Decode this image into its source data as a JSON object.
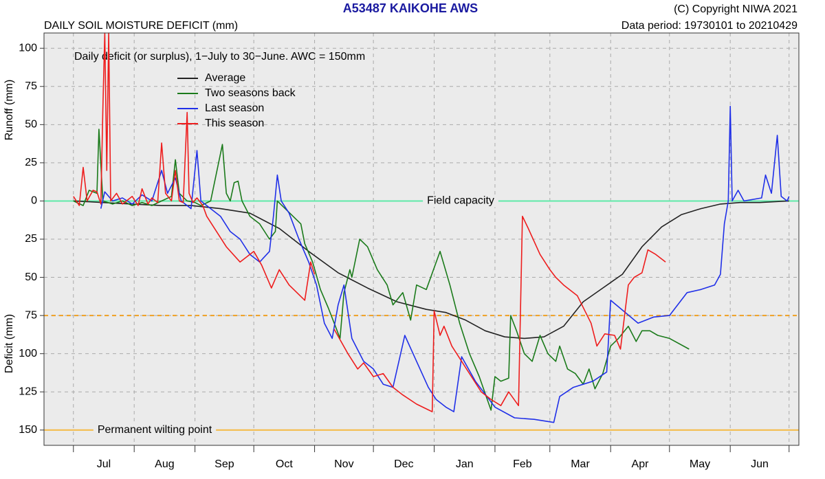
{
  "chart_data": {
    "type": "line",
    "title": "A53487  KAIKOHE AWS",
    "subtitle": "DAILY SOIL MOISTURE DEFICIT (mm)",
    "copyright": "(C) Copyright NIWA  2021",
    "data_period": "Data period:  19730101  to  20210429",
    "annotation": "Daily deficit (or surplus), 1−July to 30−June.  AWC = 150mm",
    "y_label_top": "Runoff (mm)",
    "y_label_bottom": "Deficit (mm)",
    "categories": [
      "Jul",
      "Aug",
      "Sep",
      "Oct",
      "Nov",
      "Dec",
      "Jan",
      "Feb",
      "Mar",
      "Apr",
      "May",
      "Jun"
    ],
    "xticks": [
      0,
      31,
      62,
      92,
      123,
      153,
      184,
      215,
      243,
      274,
      304,
      335,
      365
    ],
    "xlim": [
      -15,
      370
    ],
    "ylim": [
      -160,
      110
    ],
    "yticks": [
      100,
      75,
      50,
      25,
      0,
      {
        "value": -25,
        "label": "25"
      },
      {
        "value": -50,
        "label": "50"
      },
      {
        "value": -75,
        "label": "75"
      },
      {
        "value": -100,
        "label": "100"
      },
      {
        "value": -125,
        "label": "125"
      },
      {
        "value": -150,
        "label": "150"
      }
    ],
    "grid": true,
    "legend": "top-left",
    "hlines": [
      {
        "value": 0,
        "label": "Field capacity",
        "color": "#5eeaa8"
      },
      {
        "value": -75,
        "color": "#f0a020",
        "style": "dashed"
      },
      {
        "value": -150,
        "label": "Permanent wilting point",
        "color": "#f5b942"
      }
    ],
    "series": [
      {
        "name": "Average",
        "color": "#222222",
        "x": [
          0,
          15,
          30,
          45,
          60,
          75,
          90,
          105,
          120,
          135,
          150,
          165,
          180,
          190,
          200,
          210,
          220,
          230,
          240,
          250,
          260,
          270,
          280,
          290,
          300,
          310,
          320,
          330,
          340,
          350,
          365
        ],
        "values": [
          0,
          -1,
          -2,
          -3,
          -3,
          -5,
          -8,
          -18,
          -33,
          -47,
          -57,
          -66,
          -71,
          -73,
          -78,
          -85,
          -89,
          -90,
          -89,
          -82,
          -66,
          -57,
          -48,
          -30,
          -17,
          -9,
          -5,
          -2,
          -1,
          -1,
          0
        ]
      },
      {
        "name": "Two seasons back",
        "color": "#1a7a1a",
        "x": [
          0,
          5,
          8,
          12,
          13,
          15,
          20,
          25,
          30,
          35,
          40,
          45,
          50,
          52,
          54,
          58,
          62,
          65,
          70,
          76,
          78,
          80,
          82,
          84,
          86,
          90,
          95,
          100,
          103,
          104,
          108,
          112,
          116,
          118,
          122,
          126,
          130,
          133,
          136,
          138,
          141,
          142,
          146,
          150,
          155,
          160,
          163,
          168,
          172,
          175,
          180,
          187,
          192,
          197,
          202,
          207,
          213,
          215,
          218,
          222,
          223,
          226,
          230,
          234,
          238,
          242,
          246,
          248,
          252,
          256,
          260,
          263,
          266,
          270,
          274,
          278,
          283,
          287,
          290,
          294,
          298,
          304,
          314
        ],
        "values": [
          0,
          -3,
          7,
          5,
          47,
          0,
          -2,
          0,
          -3,
          -1,
          -3,
          0,
          3,
          27,
          5,
          0,
          -1,
          -3,
          0,
          37,
          5,
          0,
          12,
          13,
          0,
          -10,
          -15,
          -25,
          -20,
          0,
          -5,
          -10,
          -15,
          -28,
          -40,
          -58,
          -70,
          -80,
          -90,
          -60,
          -45,
          -50,
          -25,
          -30,
          -45,
          -55,
          -68,
          -60,
          -78,
          -55,
          -58,
          -33,
          -55,
          -80,
          -100,
          -115,
          -137,
          -115,
          -118,
          -116,
          -75,
          -85,
          -100,
          -105,
          -88,
          -100,
          -105,
          -95,
          -110,
          -113,
          -120,
          -110,
          -123,
          -113,
          -95,
          -90,
          -82,
          -92,
          -85,
          -85,
          -88,
          -90,
          -97
        ]
      },
      {
        "name": "Last season",
        "color": "#1f2fe8",
        "x": [
          14,
          16,
          20,
          25,
          30,
          35,
          40,
          45,
          48,
          52,
          55,
          60,
          63,
          65,
          70,
          75,
          80,
          85,
          90,
          95,
          100,
          102,
          104,
          106,
          110,
          115,
          120,
          124,
          128,
          132,
          135,
          138,
          142,
          148,
          153,
          158,
          163,
          169,
          175,
          181,
          185,
          190,
          194,
          198,
          205,
          215,
          225,
          235,
          245,
          248,
          255,
          265,
          272,
          274,
          288,
          296,
          304,
          313,
          320,
          327,
          330,
          332,
          334,
          335,
          336,
          339,
          342,
          351,
          353,
          356,
          359,
          361,
          364,
          365
        ],
        "values": [
          -5,
          6,
          0,
          2,
          -2,
          4,
          0,
          20,
          5,
          15,
          0,
          -5,
          33,
          0,
          -5,
          -10,
          -20,
          -25,
          -35,
          -40,
          -33,
          -10,
          17,
          0,
          -8,
          -25,
          -40,
          -55,
          -80,
          -90,
          -68,
          -55,
          -90,
          -105,
          -110,
          -120,
          -122,
          -88,
          -105,
          -122,
          -130,
          -135,
          -138,
          -102,
          -118,
          -135,
          -142,
          -143,
          -145,
          -128,
          -122,
          -118,
          -112,
          -65,
          -80,
          -76,
          -75,
          -60,
          -58,
          -55,
          -48,
          -15,
          0,
          62,
          0,
          7,
          0,
          2,
          17,
          5,
          43,
          3,
          0,
          3
        ]
      },
      {
        "name": "This season",
        "color": "#ee1c1c",
        "x": [
          0,
          3,
          5,
          7,
          10,
          12,
          14,
          15,
          16,
          17,
          18,
          19,
          22,
          25,
          30,
          33,
          35,
          38,
          40,
          43,
          45,
          47,
          50,
          52,
          54,
          56,
          58,
          59,
          61,
          63,
          66,
          68,
          78,
          85,
          92,
          96,
          101,
          105,
          110,
          118,
          121,
          123,
          128,
          133,
          140,
          145,
          148,
          153,
          158,
          163,
          168,
          175,
          183,
          184,
          187,
          189,
          193,
          198,
          203,
          208,
          213,
          218,
          222,
          227,
          229,
          232,
          238,
          243,
          246,
          250,
          257,
          264,
          267,
          271,
          276,
          279,
          283,
          286,
          290,
          293,
          297,
          302
        ],
        "values": [
          3,
          -3,
          22,
          0,
          7,
          6,
          -2,
          60,
          110,
          20,
          110,
          0,
          5,
          -2,
          3,
          -3,
          8,
          -2,
          2,
          -1,
          38,
          5,
          0,
          20,
          0,
          -1,
          58,
          5,
          -1,
          2,
          -3,
          -10,
          -30,
          -40,
          -33,
          -42,
          -57,
          -45,
          -55,
          -65,
          -40,
          -48,
          null,
          -84,
          -100,
          -110,
          -106,
          -115,
          -113,
          -122,
          -127,
          -133,
          -138,
          -72,
          -88,
          -82,
          -95,
          -105,
          -115,
          -125,
          -130,
          -134,
          -125,
          -134,
          -10,
          -18,
          -35,
          -45,
          -50,
          -55,
          -62,
          -80,
          -95,
          -87,
          -88,
          -97,
          -55,
          -50,
          -47,
          -32,
          -35,
          -40
        ]
      }
    ]
  }
}
